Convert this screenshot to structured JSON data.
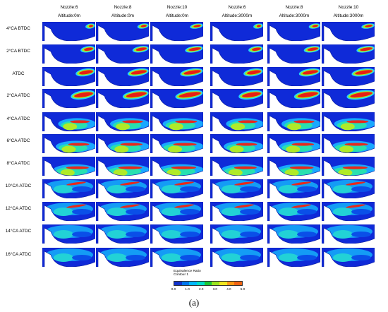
{
  "columns": [
    {
      "nozzle": "Nozzle:6",
      "altitude": "Altitude:0m"
    },
    {
      "nozzle": "Nozzle:8",
      "altitude": "Altitude:0m"
    },
    {
      "nozzle": "Nozzle:10",
      "altitude": "Altitude:0m"
    },
    {
      "nozzle": "Nozzle:6",
      "altitude": "Altitude:3000m"
    },
    {
      "nozzle": "Nozzle:8",
      "altitude": "Altitude:3000m"
    },
    {
      "nozzle": "Nozzle:10",
      "altitude": "Altitude:3000m"
    }
  ],
  "rows": [
    "4°CA BTDC",
    "2°CA BTDC",
    "ATDC",
    "2°CA ATDC",
    "4°CA ATDC",
    "6°CA ATDC",
    "8°CA ATDC",
    "10°CA ATDC",
    "12°CA ATDC",
    "14°CA ATDC",
    "16°CA ATDC"
  ],
  "legend": {
    "title": "Equivalence Ratio",
    "subtitle": "Contour 1",
    "ticks": [
      "0.0",
      "1.0",
      "2.0",
      "3.0",
      "4.0",
      "5.0"
    ],
    "colors": [
      "#1133cc",
      "#0077ee",
      "#00b8ff",
      "#00dcc8",
      "#19c837",
      "#9be41e",
      "#f0e61e",
      "#ff9914",
      "#f06414"
    ]
  },
  "caption": "(a)"
}
